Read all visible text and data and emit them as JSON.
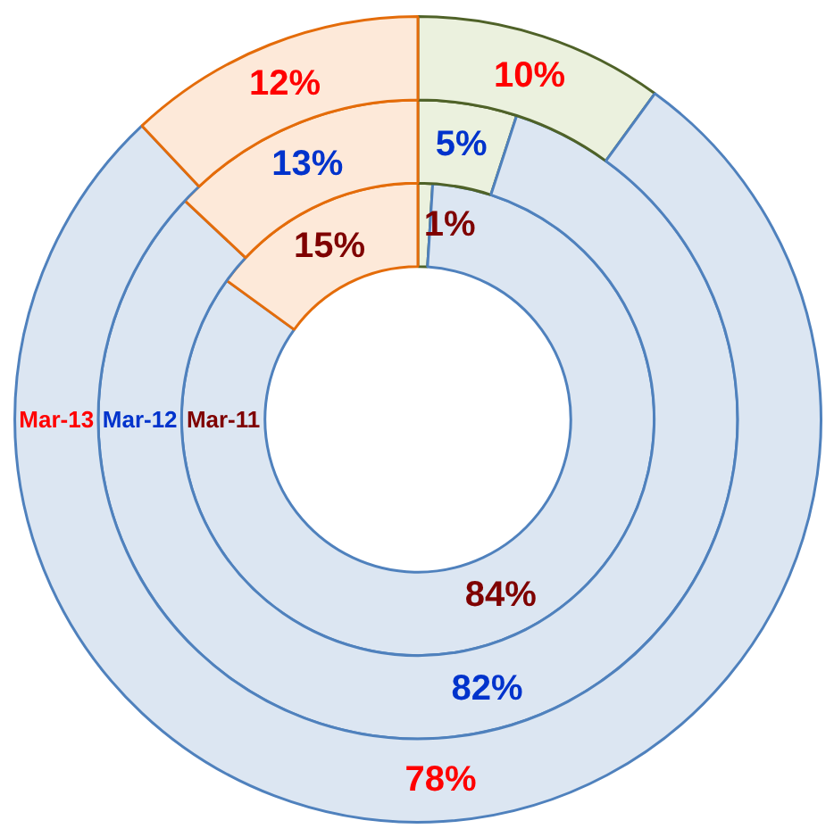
{
  "chart_data": {
    "type": "donut",
    "categories": [
      null,
      null,
      null
    ],
    "colors": [
      "#ebf1de",
      "#dce6f2",
      "#fde9d9"
    ],
    "series": [
      {
        "name": "Mar-11",
        "color": "#7f0000",
        "values": [
          1,
          84,
          15
        ],
        "value_labels": [
          "1%",
          "84%",
          "15%"
        ]
      },
      {
        "name": "Mar-12",
        "color": "#0033cc",
        "values": [
          5,
          82,
          13
        ],
        "value_labels": [
          "5%",
          "82%",
          "13%"
        ]
      },
      {
        "name": "Mar-13",
        "color": "#ff0000",
        "values": [
          10,
          78,
          12
        ],
        "value_labels": [
          "10%",
          "78%",
          "12%"
        ]
      }
    ]
  }
}
